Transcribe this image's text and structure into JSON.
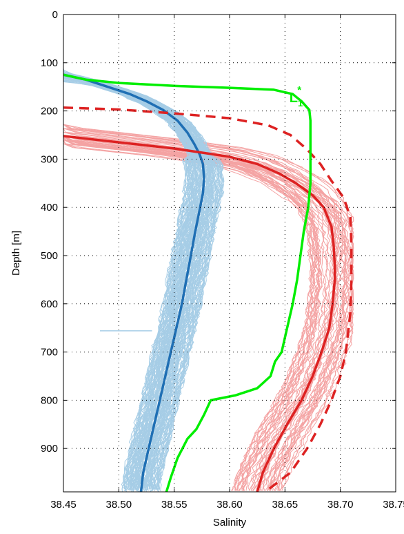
{
  "chart_data": {
    "type": "line",
    "xlabel": "Salinity",
    "ylabel": "Depth [m]",
    "xlim": [
      38.45,
      38.75
    ],
    "ylim": [
      0,
      990
    ],
    "y_axis": "reversed",
    "grid": true,
    "xticks": [
      "38.45",
      "38.50",
      "38.55",
      "38.60",
      "38.65",
      "38.70",
      "38.75"
    ],
    "yticks": [
      "0",
      "100",
      "200",
      "300",
      "400",
      "500",
      "600",
      "700",
      "800",
      "900"
    ],
    "annotations": [
      {
        "text": "L",
        "subscript": "1",
        "superscript": "*",
        "x": 38.654,
        "y": 182,
        "color": "#00ee00"
      }
    ],
    "series": [
      {
        "color": "#1f6fb4",
        "style": "solid",
        "role": "mean",
        "points": [
          [
            38.45,
            125
          ],
          [
            38.47,
            135
          ],
          [
            38.49,
            150
          ],
          [
            38.51,
            165
          ],
          [
            38.525,
            180
          ],
          [
            38.54,
            198
          ],
          [
            38.553,
            220
          ],
          [
            38.562,
            245
          ],
          [
            38.568,
            268
          ],
          [
            38.573,
            290
          ],
          [
            38.576,
            310
          ],
          [
            38.577,
            340
          ],
          [
            38.576,
            370
          ],
          [
            38.573,
            405
          ],
          [
            38.569,
            450
          ],
          [
            38.565,
            500
          ],
          [
            38.561,
            550
          ],
          [
            38.557,
            600
          ],
          [
            38.552,
            650
          ],
          [
            38.547,
            700
          ],
          [
            38.542,
            750
          ],
          [
            38.537,
            800
          ],
          [
            38.532,
            850
          ],
          [
            38.527,
            900
          ],
          [
            38.522,
            950
          ],
          [
            38.52,
            990
          ]
        ]
      },
      {
        "color": "#dd2222",
        "style": "solid",
        "role": "mean",
        "points": [
          [
            38.45,
            252
          ],
          [
            38.5,
            265
          ],
          [
            38.55,
            278
          ],
          [
            38.6,
            295
          ],
          [
            38.625,
            310
          ],
          [
            38.645,
            330
          ],
          [
            38.66,
            350
          ],
          [
            38.675,
            375
          ],
          [
            38.685,
            400
          ],
          [
            38.692,
            440
          ],
          [
            38.694,
            480
          ],
          [
            38.695,
            520
          ],
          [
            38.695,
            550
          ],
          [
            38.693,
            600
          ],
          [
            38.69,
            650
          ],
          [
            38.683,
            700
          ],
          [
            38.675,
            750
          ],
          [
            38.665,
            800
          ],
          [
            38.652,
            850
          ],
          [
            38.64,
            900
          ],
          [
            38.63,
            950
          ],
          [
            38.625,
            990
          ]
        ]
      },
      {
        "color": "#dd2222",
        "style": "dashed",
        "role": "mean",
        "points": [
          [
            38.45,
            193
          ],
          [
            38.5,
            197
          ],
          [
            38.55,
            205
          ],
          [
            38.6,
            215
          ],
          [
            38.635,
            230
          ],
          [
            38.655,
            250
          ],
          [
            38.67,
            280
          ],
          [
            38.682,
            310
          ],
          [
            38.692,
            345
          ],
          [
            38.703,
            380
          ],
          [
            38.709,
            420
          ],
          [
            38.71,
            480
          ],
          [
            38.71,
            550
          ],
          [
            38.709,
            620
          ],
          [
            38.705,
            700
          ],
          [
            38.7,
            750
          ],
          [
            38.692,
            800
          ],
          [
            38.682,
            850
          ],
          [
            38.67,
            900
          ],
          [
            38.655,
            950
          ],
          [
            38.635,
            985
          ]
        ]
      },
      {
        "color": "#00ee00",
        "style": "solid",
        "role": "L1*",
        "points": [
          [
            38.45,
            125
          ],
          [
            38.47,
            135
          ],
          [
            38.5,
            142
          ],
          [
            38.55,
            148
          ],
          [
            38.6,
            152
          ],
          [
            38.64,
            156
          ],
          [
            38.657,
            165
          ],
          [
            38.665,
            180
          ],
          [
            38.672,
            198
          ],
          [
            38.673,
            220
          ],
          [
            38.673,
            300
          ],
          [
            38.673,
            350
          ],
          [
            38.671,
            400
          ],
          [
            38.667,
            450
          ],
          [
            38.664,
            500
          ],
          [
            38.661,
            550
          ],
          [
            38.657,
            600
          ],
          [
            38.652,
            650
          ],
          [
            38.647,
            700
          ],
          [
            38.641,
            720
          ],
          [
            38.637,
            750
          ],
          [
            38.625,
            775
          ],
          [
            38.605,
            790
          ],
          [
            38.583,
            800
          ],
          [
            38.577,
            830
          ],
          [
            38.57,
            860
          ],
          [
            38.562,
            880
          ],
          [
            38.553,
            920
          ],
          [
            38.547,
            960
          ],
          [
            38.543,
            990
          ]
        ]
      }
    ]
  }
}
